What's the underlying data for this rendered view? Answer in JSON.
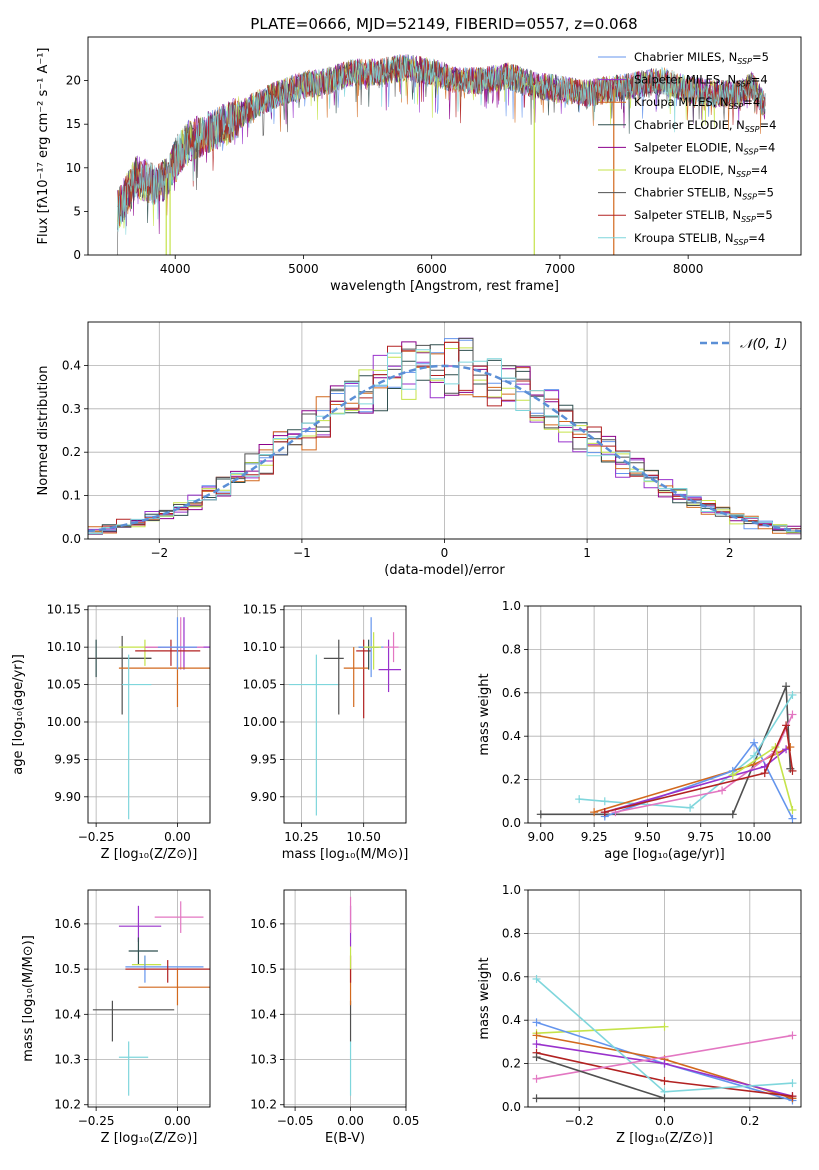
{
  "figure": {
    "title": "PLATE=0666, MJD=52149, FIBERID=0557, z=0.068"
  },
  "legend": [
    {
      "base": "Chabrier MILES, N",
      "sub": "SSP",
      "tail": "=5",
      "color": "#6495ed"
    },
    {
      "base": "Salpeter MILES, N",
      "sub": "SSP",
      "tail": "=4",
      "color": "#9932cc"
    },
    {
      "base": "Kroupa MILES, N",
      "sub": "SSP",
      "tail": "=4",
      "color": "#d2691e"
    },
    {
      "base": "Chabrier ELODIE, N",
      "sub": "SSP",
      "tail": "=4",
      "color": "#2f4f4f"
    },
    {
      "base": "Salpeter ELODIE, N",
      "sub": "SSP",
      "tail": "=4",
      "color": "#8b008b"
    },
    {
      "base": "Kroupa ELODIE, N",
      "sub": "SSP",
      "tail": "=4",
      "color": "#c5e34a"
    },
    {
      "base": "Chabrier STELIB, N",
      "sub": "SSP",
      "tail": "=5",
      "color": "#505050"
    },
    {
      "base": "Salpeter STELIB, N",
      "sub": "SSP",
      "tail": "=5",
      "color": "#b22222"
    },
    {
      "base": "Kroupa STELIB, N",
      "sub": "SSP",
      "tail": "=4",
      "color": "#7fd6dc"
    }
  ],
  "colors": {
    "pink": "#e377c2",
    "purple": "#9932cc",
    "grid": "#b0b0b0"
  },
  "chart_data": [
    {
      "id": "spectrum",
      "type": "line",
      "xlabel": "wavelength [Angstrom, rest frame]",
      "ylabel": "Flux [fλ10⁻¹⁷ erg cm⁻² s⁻¹ A⁻¹]",
      "xlim": [
        3320,
        8880
      ],
      "ylim": [
        0,
        25
      ],
      "xticks": [
        "4000",
        "5000",
        "6000",
        "7000",
        "8000"
      ],
      "yticks": [
        "0",
        "5",
        "10",
        "15",
        "20"
      ],
      "continuum": [
        [
          3550,
          5
        ],
        [
          3700,
          9
        ],
        [
          3850,
          8
        ],
        [
          3950,
          9
        ],
        [
          4000,
          11
        ],
        [
          4100,
          13
        ],
        [
          4250,
          14
        ],
        [
          4400,
          15
        ],
        [
          4600,
          17
        ],
        [
          4800,
          18.5
        ],
        [
          5000,
          19.5
        ],
        [
          5200,
          20
        ],
        [
          5400,
          21
        ],
        [
          5600,
          21
        ],
        [
          5800,
          21.5
        ],
        [
          6000,
          21
        ],
        [
          6200,
          20
        ],
        [
          6400,
          20
        ],
        [
          6600,
          20.5
        ],
        [
          6800,
          19.5
        ],
        [
          7000,
          19
        ],
        [
          7200,
          18.5
        ],
        [
          7400,
          19
        ],
        [
          7600,
          19.5
        ],
        [
          7800,
          20
        ],
        [
          8000,
          19
        ],
        [
          8200,
          18.5
        ],
        [
          8400,
          18.5
        ],
        [
          8500,
          19.5
        ],
        [
          8600,
          17
        ]
      ],
      "dropouts": [
        [
          3930,
          "#c5e34a"
        ],
        [
          3960,
          "#c5e34a"
        ],
        [
          6800,
          "#c5e34a"
        ],
        [
          7420,
          "#d2691e"
        ]
      ]
    },
    {
      "id": "residuals",
      "type": "bar",
      "xlabel": "(data-model)/error",
      "ylabel": "Normed distribution",
      "xlim": [
        -2.5,
        2.5
      ],
      "ylim": [
        0,
        0.5
      ],
      "xticks": [
        "−2",
        "−1",
        "0",
        "1",
        "2"
      ],
      "yticks": [
        "0.0",
        "0.1",
        "0.2",
        "0.3",
        "0.4"
      ],
      "legend_label": "𝒩(0, 1)",
      "bin_width": 0.1
    },
    {
      "id": "age_vs_Z",
      "type": "scatter",
      "xlabel": "Z [log₁₀(Z/Z⊙)]",
      "ylabel": "age  [log₁₀(age/yr)]",
      "xlim": [
        -0.275,
        0.1
      ],
      "ylim": [
        9.865,
        10.155
      ],
      "xticks": [
        "−0.25",
        "0.00"
      ],
      "xtickvals": [
        -0.25,
        0.0
      ],
      "yticks": [
        "9.90",
        "9.95",
        "10.00",
        "10.05",
        "10.10",
        "10.15"
      ],
      "points": [
        {
          "x": -0.25,
          "y": 10.085,
          "xe": [
            -0.25,
            -0.08
          ],
          "ye": [
            10.06,
            10.11
          ],
          "color": "#2f4f4f"
        },
        {
          "x": -0.17,
          "y": 10.085,
          "xe": [
            -0.28,
            -0.08
          ],
          "ye": [
            10.01,
            10.115
          ],
          "color": "#505050"
        },
        {
          "x": -0.1,
          "y": 10.1,
          "xe": [
            -0.18,
            -0.05
          ],
          "ye": [
            10.075,
            10.11
          ],
          "color": "#c5e34a"
        },
        {
          "x": 0.02,
          "y": 10.1,
          "xe": [
            -0.1,
            0.1
          ],
          "ye": [
            10.07,
            10.14
          ],
          "color": "#9932cc"
        },
        {
          "x": 0.01,
          "y": 10.1,
          "xe": [
            -0.1,
            0.08
          ],
          "ye": [
            10.07,
            10.14
          ],
          "color": "#e377c2"
        },
        {
          "x": -0.02,
          "y": 10.095,
          "xe": [
            -0.13,
            0.07
          ],
          "ye": [
            10.075,
            10.11
          ],
          "color": "#b22222"
        },
        {
          "x": 0.0,
          "y": 10.072,
          "xe": [
            -0.18,
            0.1
          ],
          "ye": [
            10.02,
            10.1
          ],
          "color": "#d2691e"
        },
        {
          "x": 0.0,
          "y": 10.1,
          "xe": [
            -0.06,
            0.06
          ],
          "ye": [
            10.07,
            10.14
          ],
          "color": "#6495ed"
        },
        {
          "x": -0.15,
          "y": 10.05,
          "xe": [
            -0.17,
            -0.08
          ],
          "ye": [
            9.87,
            10.09
          ],
          "color": "#7fd6dc"
        }
      ]
    },
    {
      "id": "age_vs_mass",
      "type": "scatter",
      "xlabel": "mass [log₁₀(M/M⊙)]",
      "ylabel": "",
      "xlim": [
        10.18,
        10.67
      ],
      "ylim": [
        9.865,
        10.155
      ],
      "xticks": [
        "10.25",
        "10.50"
      ],
      "xtickvals": [
        10.25,
        10.5
      ],
      "yticks": [
        "9.90",
        "9.95",
        "10.00",
        "10.05",
        "10.10",
        "10.15"
      ],
      "points": [
        {
          "x": 10.31,
          "y": 10.05,
          "xe": [
            10.2,
            10.4
          ],
          "ye": [
            9.875,
            10.09
          ],
          "color": "#7fd6dc"
        },
        {
          "x": 10.4,
          "y": 10.085,
          "xe": [
            10.34,
            10.42
          ],
          "ye": [
            10.01,
            10.11
          ],
          "color": "#505050"
        },
        {
          "x": 10.5,
          "y": 10.095,
          "xe": [
            10.47,
            10.53
          ],
          "ye": [
            10.005,
            10.11
          ],
          "color": "#b22222"
        },
        {
          "x": 10.46,
          "y": 10.072,
          "xe": [
            10.42,
            10.52
          ],
          "ye": [
            10.02,
            10.1
          ],
          "color": "#d2691e"
        },
        {
          "x": 10.52,
          "y": 10.1,
          "xe": [
            10.48,
            10.56
          ],
          "ye": [
            10.07,
            10.11
          ],
          "color": "#2f4f4f"
        },
        {
          "x": 10.53,
          "y": 10.1,
          "xe": [
            10.48,
            10.58
          ],
          "ye": [
            10.06,
            10.14
          ],
          "color": "#6495ed"
        },
        {
          "x": 10.54,
          "y": 10.1,
          "xe": [
            10.5,
            10.57
          ],
          "ye": [
            10.07,
            10.12
          ],
          "color": "#c5e34a"
        },
        {
          "x": 10.6,
          "y": 10.07,
          "xe": [
            10.56,
            10.65
          ],
          "ye": [
            10.04,
            10.11
          ],
          "color": "#9932cc"
        },
        {
          "x": 10.62,
          "y": 10.1,
          "xe": [
            10.58,
            10.64
          ],
          "ye": [
            10.08,
            10.12
          ],
          "color": "#e377c2"
        }
      ]
    },
    {
      "id": "weight_vs_age",
      "type": "line",
      "xlabel": "age  [log₁₀(age/yr)]",
      "ylabel": "mass weight",
      "xlim": [
        8.94,
        10.22
      ],
      "ylim": [
        0,
        1.0
      ],
      "xticks": [
        "9.00",
        "9.25",
        "9.50",
        "9.75",
        "10.00"
      ],
      "xtickvals": [
        9.0,
        9.25,
        9.5,
        9.75,
        10.0
      ],
      "yticks": [
        "0.0",
        "0.2",
        "0.4",
        "0.6",
        "0.8",
        "1.0"
      ],
      "series": [
        {
          "color": "#505050",
          "x": [
            9.0,
            9.3,
            9.9,
            10.15,
            10.17
          ],
          "y": [
            0.04,
            0.04,
            0.04,
            0.63,
            0.25
          ]
        },
        {
          "color": "#7fd6dc",
          "x": [
            9.18,
            9.3,
            9.7,
            10.0,
            10.18
          ],
          "y": [
            0.11,
            0.1,
            0.07,
            0.31,
            0.59
          ]
        },
        {
          "color": "#d2691e",
          "x": [
            9.25,
            10.0,
            10.17
          ],
          "y": [
            0.05,
            0.27,
            0.35
          ]
        },
        {
          "color": "#6495ed",
          "x": [
            9.3,
            9.9,
            10.0,
            10.18
          ],
          "y": [
            0.03,
            0.24,
            0.37,
            0.02
          ]
        },
        {
          "color": "#e377c2",
          "x": [
            9.35,
            9.85,
            10.1,
            10.18
          ],
          "y": [
            0.05,
            0.15,
            0.33,
            0.5
          ]
        },
        {
          "color": "#9932cc",
          "x": [
            9.3,
            10.05,
            10.15
          ],
          "y": [
            0.05,
            0.26,
            0.34
          ]
        },
        {
          "color": "#c5e34a",
          "x": [
            9.9,
            10.1,
            10.18
          ],
          "y": [
            0.22,
            0.35,
            0.06
          ]
        },
        {
          "color": "#b22222",
          "x": [
            9.3,
            10.05,
            10.15,
            10.18
          ],
          "y": [
            0.05,
            0.23,
            0.45,
            0.24
          ]
        }
      ]
    },
    {
      "id": "mass_vs_Z",
      "type": "scatter",
      "xlabel": "Z [log₁₀(Z/Z⊙)]",
      "ylabel": "mass [log₁₀(M/M⊙)]",
      "xlim": [
        -0.275,
        0.1
      ],
      "ylim": [
        10.195,
        10.675
      ],
      "xticks": [
        "−0.25",
        "0.00"
      ],
      "xtickvals": [
        -0.25,
        0.0
      ],
      "yticks": [
        "10.2",
        "10.3",
        "10.4",
        "10.5",
        "10.6"
      ],
      "points": [
        {
          "x": -0.2,
          "y": 10.41,
          "xe": [
            -0.26,
            -0.01
          ],
          "ye": [
            10.34,
            10.43
          ],
          "color": "#505050"
        },
        {
          "x": -0.15,
          "y": 10.305,
          "xe": [
            -0.18,
            -0.09
          ],
          "ye": [
            10.22,
            10.34
          ],
          "color": "#7fd6dc"
        },
        {
          "x": -0.12,
          "y": 10.595,
          "xe": [
            -0.18,
            -0.05
          ],
          "ye": [
            10.56,
            10.64
          ],
          "color": "#9932cc"
        },
        {
          "x": -0.12,
          "y": 10.54,
          "xe": [
            -0.15,
            -0.06
          ],
          "ye": [
            10.51,
            10.57
          ],
          "color": "#2f4f4f"
        },
        {
          "x": -0.1,
          "y": 10.51,
          "xe": [
            -0.14,
            -0.05
          ],
          "ye": [
            10.5,
            10.53
          ],
          "color": "#c5e34a"
        },
        {
          "x": -0.1,
          "y": 10.505,
          "xe": [
            -0.16,
            0.08
          ],
          "ye": [
            10.47,
            10.53
          ],
          "color": "#6495ed"
        },
        {
          "x": -0.03,
          "y": 10.5,
          "xe": [
            -0.16,
            0.1
          ],
          "ye": [
            10.47,
            10.52
          ],
          "color": "#b22222"
        },
        {
          "x": 0.0,
          "y": 10.46,
          "xe": [
            -0.12,
            0.1
          ],
          "ye": [
            10.42,
            10.5
          ],
          "color": "#d2691e"
        },
        {
          "x": 0.01,
          "y": 10.615,
          "xe": [
            -0.07,
            0.08
          ],
          "ye": [
            10.58,
            10.65
          ],
          "color": "#e377c2"
        }
      ]
    },
    {
      "id": "mass_vs_EBV",
      "type": "scatter",
      "xlabel": "E(B-V)",
      "ylabel": "",
      "xlim": [
        -0.06,
        0.05
      ],
      "ylim": [
        10.195,
        10.675
      ],
      "xticks": [
        "−0.05",
        "0.00",
        "0.05"
      ],
      "xtickvals": [
        -0.05,
        0.0,
        0.05
      ],
      "yticks": [
        "10.2",
        "10.3",
        "10.4",
        "10.5",
        "10.6"
      ],
      "segments": [
        {
          "x": 0.0,
          "ye": [
            10.22,
            10.34
          ],
          "color": "#7fd6dc"
        },
        {
          "x": 0.0,
          "ye": [
            10.34,
            10.43
          ],
          "color": "#505050"
        },
        {
          "x": 0.0,
          "ye": [
            10.42,
            10.5
          ],
          "color": "#d2691e"
        },
        {
          "x": 0.0,
          "ye": [
            10.47,
            10.53
          ],
          "color": "#b22222"
        },
        {
          "x": 0.0,
          "ye": [
            10.5,
            10.55
          ],
          "color": "#c5e34a"
        },
        {
          "x": 0.0,
          "ye": [
            10.55,
            10.64
          ],
          "color": "#9932cc"
        },
        {
          "x": 0.0,
          "ye": [
            10.58,
            10.66
          ],
          "color": "#e377c2"
        }
      ]
    },
    {
      "id": "weight_vs_Z",
      "type": "line",
      "xlabel": "Z [log₁₀(Z/Z⊙)]",
      "ylabel": "mass weight",
      "xlim": [
        -0.32,
        0.32
      ],
      "ylim": [
        0,
        1.0
      ],
      "xticks": [
        "−0.2",
        "0.0",
        "0.2"
      ],
      "xtickvals": [
        -0.2,
        0.0,
        0.2
      ],
      "yticks": [
        "0.0",
        "0.2",
        "0.4",
        "0.6",
        "0.8",
        "1.0"
      ],
      "series": [
        {
          "color": "#505050",
          "x": [
            -0.3,
            0.3
          ],
          "y": [
            0.04,
            0.04
          ]
        },
        {
          "color": "#c5e34a",
          "x": [
            -0.3,
            0.0
          ],
          "y": [
            0.34,
            0.37
          ]
        },
        {
          "color": "#6495ed",
          "x": [
            -0.3,
            0.0,
            0.3
          ],
          "y": [
            0.39,
            0.2,
            0.03
          ]
        },
        {
          "color": "#d2691e",
          "x": [
            -0.3,
            0.0,
            0.3
          ],
          "y": [
            0.33,
            0.22,
            0.04
          ]
        },
        {
          "color": "#9932cc",
          "x": [
            -0.3,
            0.0,
            0.3
          ],
          "y": [
            0.29,
            0.2,
            0.05
          ]
        },
        {
          "color": "#b22222",
          "x": [
            -0.3,
            0.0,
            0.3
          ],
          "y": [
            0.25,
            0.12,
            0.05
          ]
        },
        {
          "color": "#7fd6dc",
          "x": [
            -0.3,
            0.0,
            0.3
          ],
          "y": [
            0.59,
            0.07,
            0.11
          ]
        },
        {
          "color": "#e377c2",
          "x": [
            -0.3,
            0.3
          ],
          "y": [
            0.13,
            0.33
          ]
        },
        {
          "color": "#505050",
          "x": [
            -0.3,
            0.0
          ],
          "y": [
            0.23,
            0.04
          ]
        }
      ]
    }
  ]
}
